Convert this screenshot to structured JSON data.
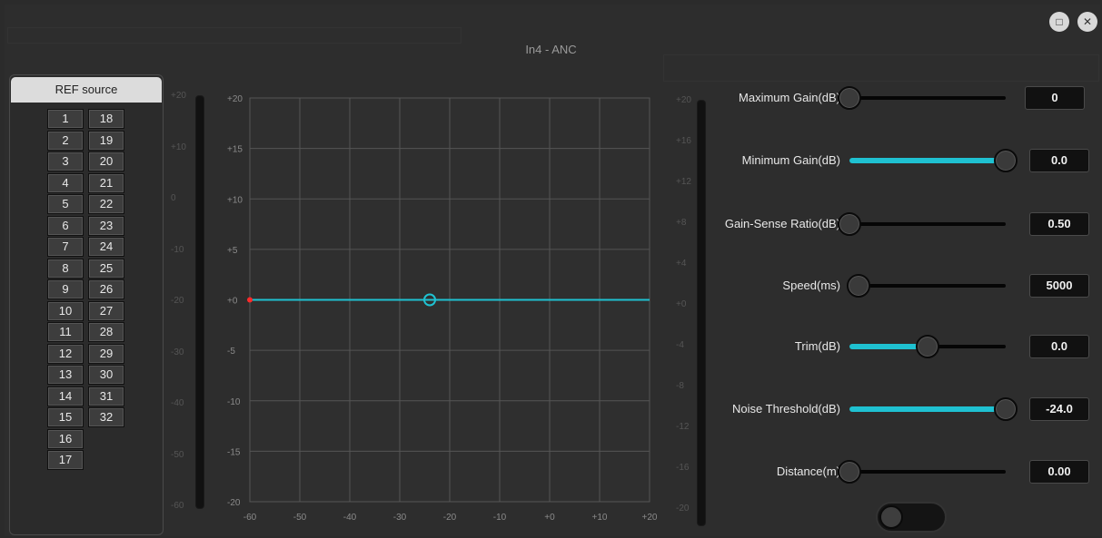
{
  "window": {
    "title": "In4 - ANC"
  },
  "window_controls": {
    "minimize_icon": "□",
    "close_icon": "✕"
  },
  "ref_source": {
    "title": "REF source",
    "col1": [
      "1",
      "2",
      "3",
      "4",
      "5",
      "6",
      "7",
      "8",
      "9",
      "10",
      "11",
      "12",
      "13",
      "14",
      "15",
      "16",
      "17"
    ],
    "col2": [
      "18",
      "19",
      "20",
      "21",
      "22",
      "23",
      "24",
      "25",
      "26",
      "27",
      "28",
      "29",
      "30",
      "31",
      "32"
    ]
  },
  "left_meter_ticks": [
    "+20",
    "+10",
    "0",
    "-10",
    "-20",
    "-30",
    "-40",
    "-50",
    "-60"
  ],
  "right_meter_ticks": [
    "+20",
    "+16",
    "+12",
    "+8",
    "+4",
    "+0",
    "-4",
    "-8",
    "-12",
    "-16",
    "-20"
  ],
  "graph": {
    "y_ticks": [
      "+20",
      "+15",
      "+10",
      "+5",
      "+0",
      "-5",
      "-10",
      "-15",
      "-20"
    ],
    "x_ticks": [
      "-60",
      "-50",
      "-40",
      "-30",
      "-20",
      "-10",
      "+0",
      "+10",
      "+20"
    ],
    "xlim": [
      -60,
      20
    ],
    "ylim": [
      -20,
      20
    ],
    "line_y": 0,
    "handle_x": -24,
    "start_x": -60
  },
  "params": [
    {
      "label": "Maximum Gain(dB)",
      "value": "0",
      "fill": 0.0
    },
    {
      "label": "Minimum Gain(dB)",
      "value": "0.0",
      "fill": 1.0
    },
    {
      "label": "Gain-Sense Ratio(dB)",
      "value": "0.50",
      "fill": 0.0
    },
    {
      "label": "Speed(ms)",
      "value": "5000",
      "fill": 0.06
    },
    {
      "label": "Trim(dB)",
      "value": "0.0",
      "fill": 0.5
    },
    {
      "label": "Noise Threshold(dB)",
      "value": "-24.0",
      "fill": 1.0
    },
    {
      "label": "Distance(m)",
      "value": "0.00",
      "fill": 0.0
    }
  ],
  "bypass_toggle": {
    "on": false
  },
  "colors": {
    "accent": "#1fc1d1",
    "marker": "#ff2a2a"
  }
}
